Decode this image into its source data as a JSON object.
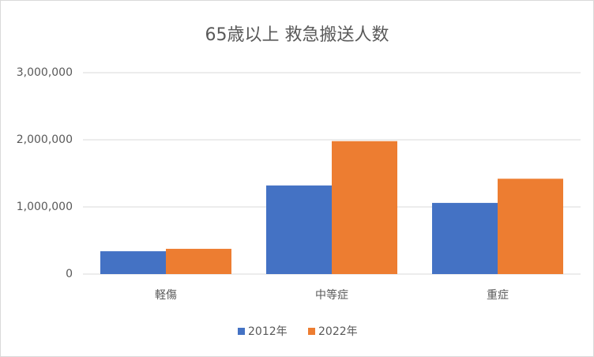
{
  "chart_data": {
    "type": "bar",
    "title": "65歳以上 救急搬送人数",
    "categories": [
      "軽傷",
      "中等症",
      "重症"
    ],
    "series": [
      {
        "name": "2012年",
        "color": "#4472c4",
        "values": [
          340000,
          1320000,
          1060000
        ]
      },
      {
        "name": "2022年",
        "color": "#ed7d31",
        "values": [
          376000,
          1980000,
          1420000
        ]
      }
    ],
    "ylim": [
      0,
      3000000
    ],
    "yticks": [
      0,
      {
        "value": 1000000,
        "label": "1,000,000"
      },
      {
        "value": 2000000,
        "label": "2,000,000"
      },
      {
        "value": 3000000,
        "label": "3,000,000"
      }
    ],
    "grid": true,
    "legend": "bottom"
  }
}
